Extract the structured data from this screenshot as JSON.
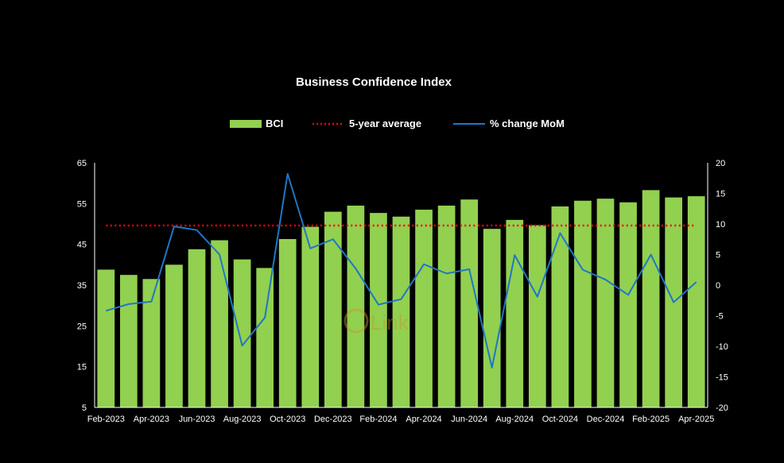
{
  "chart_data": {
    "type": "bar",
    "title": "Business Confidence Index",
    "legend": {
      "placement": "top-center",
      "entries": [
        "BCI",
        "5-year average",
        "% change MoM"
      ]
    },
    "x_tick_labels": [
      "Feb-2023",
      "Apr-2023",
      "Jun-2023",
      "Aug-2023",
      "Oct-2023",
      "Dec-2023",
      "Feb-2024",
      "Apr-2024",
      "Jun-2024",
      "Aug-2024",
      "Oct-2024",
      "Dec-2024",
      "Feb-2025",
      "Apr-2025"
    ],
    "categories": [
      "Feb-2023",
      "Mar-2023",
      "Apr-2023",
      "May-2023",
      "Jun-2023",
      "Jul-2023",
      "Aug-2023",
      "Sep-2023",
      "Oct-2023",
      "Nov-2023",
      "Dec-2023",
      "Jan-2024",
      "Feb-2024",
      "Mar-2024",
      "Apr-2024",
      "May-2024",
      "Jun-2024",
      "Jul-2024",
      "Aug-2024",
      "Sep-2024",
      "Oct-2024",
      "Nov-2024",
      "Dec-2024",
      "Jan-2025",
      "Feb-2025",
      "Mar-2025",
      "Apr-2025"
    ],
    "y_left": {
      "min": 5,
      "max": 65,
      "ticks": [
        5,
        15,
        25,
        35,
        45,
        55,
        65
      ]
    },
    "y_right": {
      "min": -20,
      "max": 20,
      "ticks": [
        -20,
        -15,
        -10,
        -5,
        0,
        5,
        10,
        15,
        20
      ]
    },
    "grid": false,
    "series": [
      {
        "name": "BCI",
        "type": "bar",
        "axis": "left",
        "color": "#92d050",
        "values": [
          38.8,
          37.5,
          36.5,
          40.0,
          43.8,
          46.0,
          41.3,
          39.2,
          46.3,
          49.3,
          53.0,
          54.5,
          52.7,
          51.8,
          53.5,
          54.5,
          56.0,
          48.8,
          51.0,
          49.7,
          54.3,
          55.7,
          56.2,
          55.3,
          58.3,
          56.5,
          56.8
        ]
      },
      {
        "name": "5-year average",
        "type": "line",
        "style": "dotted",
        "axis": "left",
        "color": "#ff0000",
        "values": [
          49.6,
          49.6,
          49.6,
          49.6,
          49.6,
          49.6,
          49.6,
          49.6,
          49.6,
          49.6,
          49.6,
          49.6,
          49.6,
          49.6,
          49.6,
          49.6,
          49.6,
          49.6,
          49.6,
          49.6,
          49.6,
          49.6,
          49.6,
          49.6,
          49.6,
          49.6,
          49.6
        ]
      },
      {
        "name": "% change MoM",
        "type": "line",
        "axis": "right",
        "color": "#1f77c4",
        "values": [
          -4.2,
          -3.1,
          -2.7,
          9.6,
          9.0,
          5.0,
          -9.9,
          -5.3,
          18.2,
          6.0,
          7.5,
          2.7,
          -3.2,
          -2.3,
          3.4,
          1.9,
          2.6,
          -13.5,
          4.9,
          -1.9,
          8.5,
          2.5,
          0.9,
          -1.6,
          5.0,
          -2.8,
          0.5
        ]
      }
    ],
    "watermark": "Link"
  }
}
